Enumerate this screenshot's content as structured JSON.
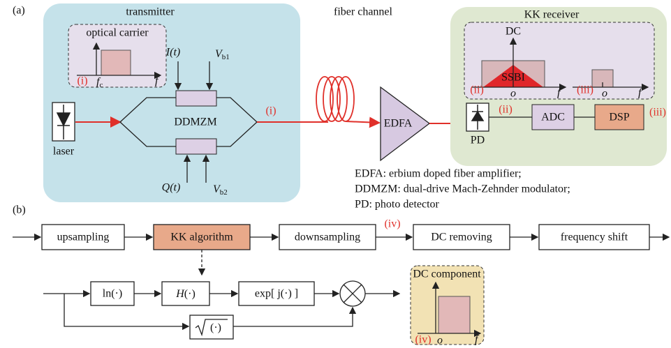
{
  "panel_a": {
    "label": "(a)",
    "transmitter": {
      "title": "transmitter",
      "optical_carrier": {
        "title": "optical carrier",
        "marker": "(i)",
        "fc": {
          "main": "f",
          "sub": "c"
        },
        "f": "f"
      },
      "i_t": "I(t)",
      "vb1": {
        "main": "V",
        "sub": "b1"
      },
      "modulator": "DDMZM",
      "q_t": "Q(t)",
      "vb2": {
        "main": "V",
        "sub": "b2"
      },
      "laser": "laser",
      "output_marker": "(i)"
    },
    "fiber": "fiber channel",
    "edfa": "EDFA",
    "receiver": {
      "title": "KK receiver",
      "inset_ii": {
        "dc": "DC",
        "ssbi": "SSBI",
        "marker": "(ii)",
        "o": "o",
        "f": "f"
      },
      "inset_iii": {
        "marker": "(iii)",
        "o": "o",
        "f": "f"
      },
      "pd": "PD",
      "pd_marker": "(ii)",
      "adc": "ADC",
      "dsp": "DSP",
      "dsp_marker": "(iii)"
    },
    "legend": [
      "EDFA: erbium doped fiber amplifier;",
      "DDMZM: dual-drive Mach-Zehnder modulator;",
      "PD: photo detector"
    ]
  },
  "panel_b": {
    "label": "(b)",
    "pipeline": [
      "upsampling",
      "KK algorithm",
      "downsampling",
      "DC removing",
      "frequency shift"
    ],
    "marker": "(iv)",
    "kk": {
      "ln": "ln(·)",
      "h": {
        "main": "H",
        "rest": "(·)"
      },
      "exp": "exp[ j(·) ]",
      "sqrt": "(·)"
    },
    "dc_component": {
      "title": "DC component",
      "marker": "(iv)",
      "o": "o",
      "f": "f"
    }
  }
}
